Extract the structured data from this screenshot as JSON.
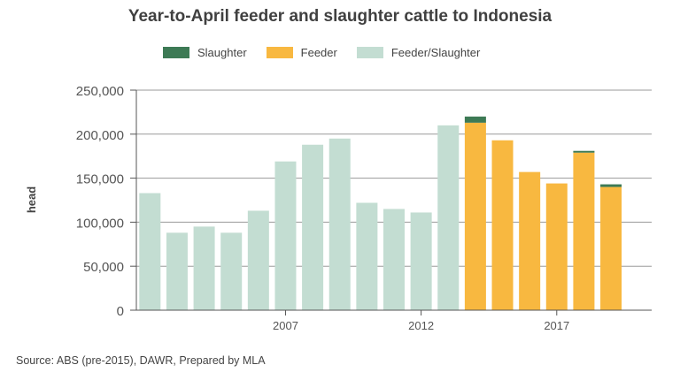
{
  "chart_data": {
    "type": "bar",
    "stacked": true,
    "title": "Year-to-April feeder and slaughter cattle to Indonesia",
    "xlabel": "",
    "ylabel": "head",
    "ylim": [
      0,
      250000
    ],
    "yticks": [
      0,
      50000,
      100000,
      150000,
      200000,
      250000
    ],
    "ytick_labels": [
      "0",
      "50,000",
      "100,000",
      "150,000",
      "200,000",
      "250,000"
    ],
    "categories": [
      2002,
      2003,
      2004,
      2005,
      2006,
      2007,
      2008,
      2009,
      2010,
      2011,
      2012,
      2013,
      2014,
      2015,
      2016,
      2017,
      2018,
      2019,
      2020
    ],
    "xticks": [
      2007,
      2012,
      2017
    ],
    "xtick_labels": [
      "2007",
      "2012",
      "2017"
    ],
    "series": [
      {
        "name": "Feeder/Slaughter",
        "color": "#c3ddd2",
        "values": [
          133000,
          88000,
          95000,
          88000,
          113000,
          169000,
          188000,
          195000,
          122000,
          115000,
          111000,
          210000,
          0,
          0,
          0,
          0,
          0,
          0,
          0
        ]
      },
      {
        "name": "Feeder",
        "color": "#f8b840",
        "values": [
          0,
          0,
          0,
          0,
          0,
          0,
          0,
          0,
          0,
          0,
          0,
          0,
          213000,
          193000,
          157000,
          144000,
          179000,
          140000,
          0
        ]
      },
      {
        "name": "Slaughter",
        "color": "#3d7a55",
        "values": [
          0,
          0,
          0,
          0,
          0,
          0,
          0,
          0,
          0,
          0,
          0,
          0,
          7000,
          0,
          0,
          0,
          2000,
          3000,
          0
        ]
      }
    ],
    "legend": {
      "position": "top",
      "items": [
        {
          "label": "Slaughter",
          "color": "#3d7a55"
        },
        {
          "label": "Feeder",
          "color": "#f8b840"
        },
        {
          "label": "Feeder/Slaughter",
          "color": "#c3ddd2"
        }
      ]
    },
    "grid": true,
    "source": "Source: ABS (pre-2015), DAWR, Prepared by MLA"
  }
}
